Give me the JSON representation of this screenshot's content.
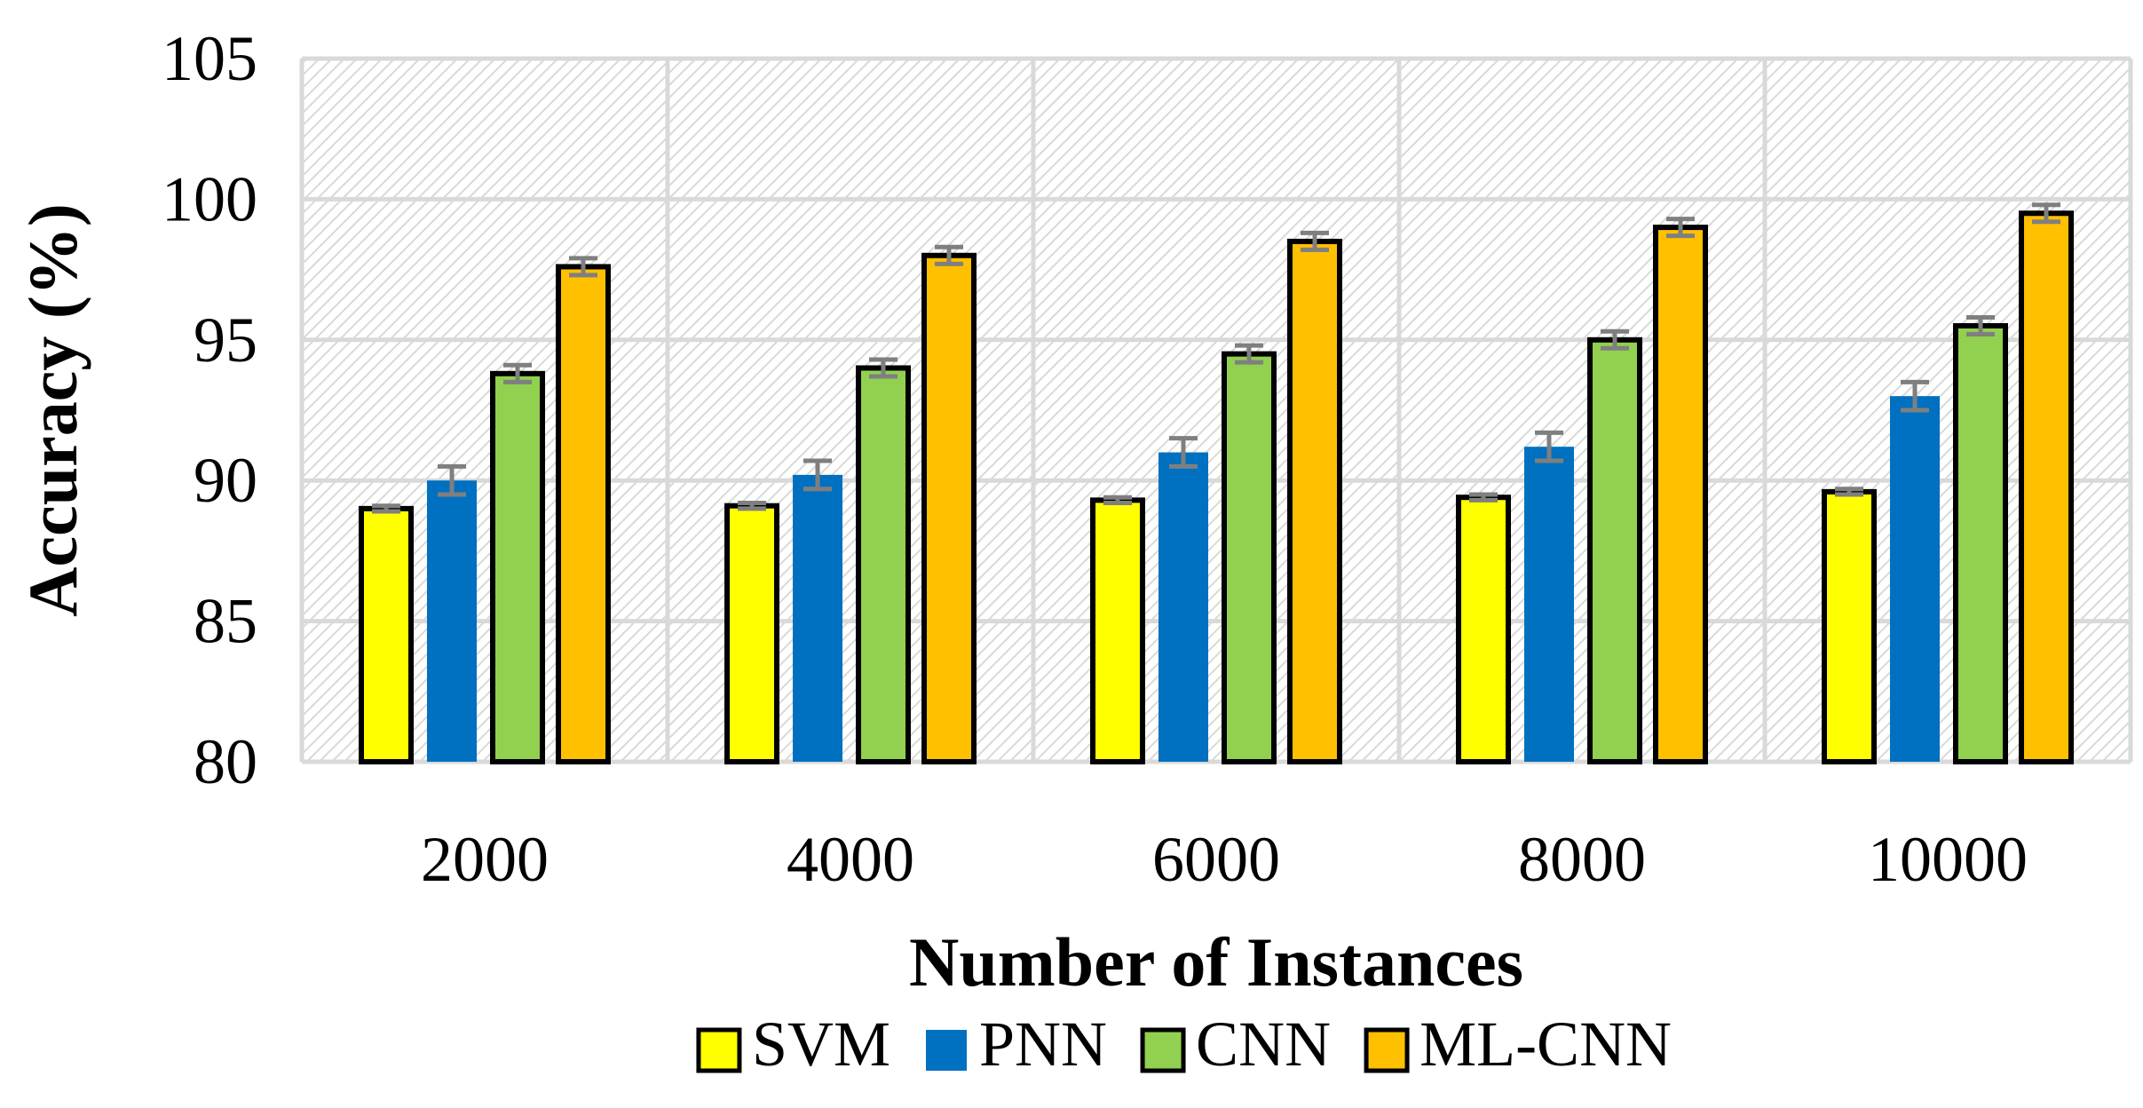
{
  "chart_data": {
    "type": "bar",
    "xlabel": "Number of Instances",
    "ylabel": "Accuracy (%)",
    "ylim": [
      80,
      105
    ],
    "yticks": [
      80,
      85,
      90,
      95,
      100,
      105
    ],
    "categories": [
      "2000",
      "4000",
      "6000",
      "8000",
      "10000"
    ],
    "grid": true,
    "legend_position": "bottom",
    "series": [
      {
        "name": "SVM",
        "color": "#FFFF00",
        "values": [
          89.0,
          89.1,
          89.3,
          89.4,
          89.6
        ],
        "errors": [
          0.1,
          0.1,
          0.1,
          0.1,
          0.1
        ]
      },
      {
        "name": "PNN",
        "color": "#0070C0",
        "values": [
          90.0,
          90.2,
          91.0,
          91.2,
          93.0
        ],
        "errors": [
          0.5,
          0.5,
          0.5,
          0.5,
          0.5
        ]
      },
      {
        "name": "CNN",
        "color": "#92D050",
        "values": [
          93.8,
          94.0,
          94.5,
          95.0,
          95.5
        ],
        "errors": [
          0.3,
          0.3,
          0.3,
          0.3,
          0.3
        ]
      },
      {
        "name": "ML-CNN",
        "color": "#FFC000",
        "values": [
          97.6,
          98.0,
          98.5,
          99.0,
          99.5
        ],
        "errors": [
          0.3,
          0.3,
          0.3,
          0.3,
          0.3
        ]
      }
    ]
  }
}
